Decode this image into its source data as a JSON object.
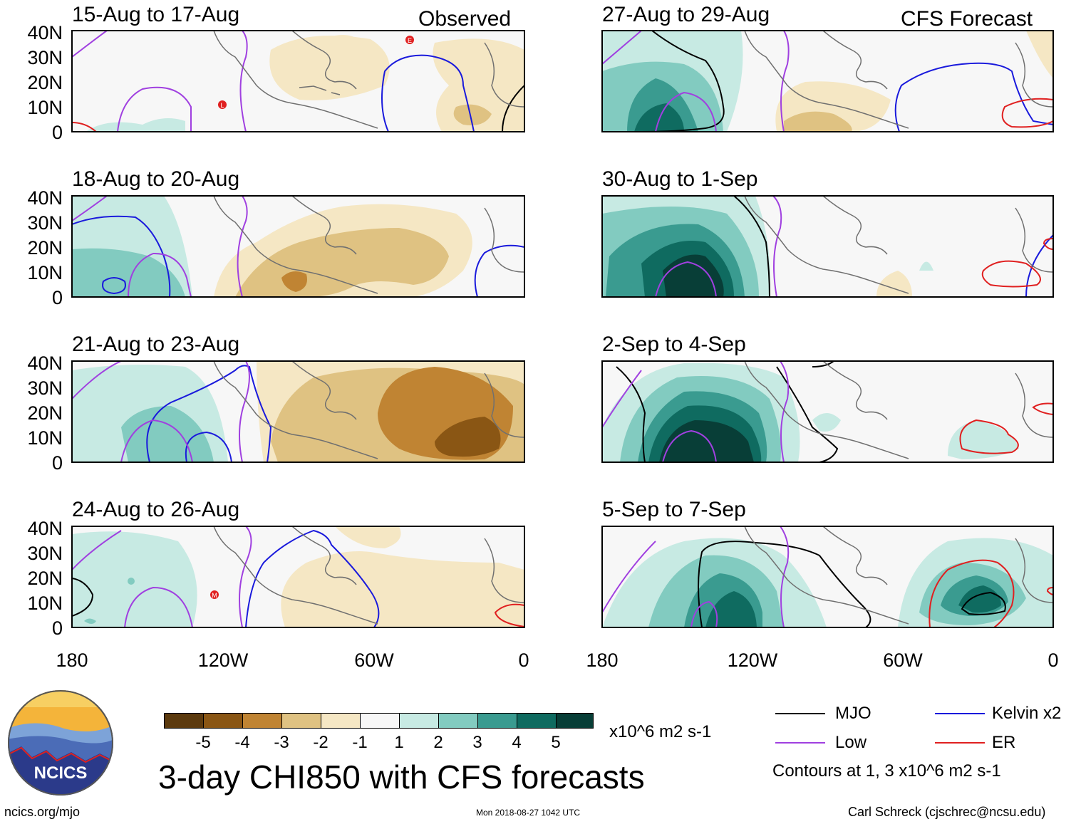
{
  "panels_left": [
    {
      "title": "15-Aug to 17-Aug",
      "tag": "Observed"
    },
    {
      "title": "18-Aug to 20-Aug",
      "tag": ""
    },
    {
      "title": "21-Aug to 23-Aug",
      "tag": ""
    },
    {
      "title": "24-Aug to 26-Aug",
      "tag": ""
    }
  ],
  "panels_right": [
    {
      "title": "27-Aug to 29-Aug",
      "tag": "CFS Forecast"
    },
    {
      "title": "30-Aug to 1-Sep",
      "tag": ""
    },
    {
      "title": "2-Sep to 4-Sep",
      "tag": ""
    },
    {
      "title": "5-Sep to 7-Sep",
      "tag": ""
    }
  ],
  "lat_labels": [
    "40N",
    "30N",
    "20N",
    "10N",
    "0"
  ],
  "lon_labels": [
    "180",
    "120W",
    "60W",
    "0"
  ],
  "storm_markers": [
    "E",
    "L",
    "M"
  ],
  "colorbar": {
    "colors": [
      "#5c3a0e",
      "#8a5614",
      "#c08433",
      "#dfc282",
      "#f5e7c4",
      "#f7f7f7",
      "#c7eae3",
      "#82cbc0",
      "#3a9b90",
      "#0f6b60",
      "#083e37"
    ],
    "ticks": [
      "-5",
      "-4",
      "-3",
      "-2",
      "-1",
      "1",
      "2",
      "3",
      "4",
      "5"
    ],
    "units": "x10^6 m2 s-1"
  },
  "main_title": "3-day CHI850 with CFS forecasts",
  "legend": {
    "items": [
      {
        "label": "MJO",
        "color": "#000000"
      },
      {
        "label": "Kelvin x2",
        "color": "#1a1adc"
      },
      {
        "label": "Low",
        "color": "#a040e0"
      },
      {
        "label": "ER",
        "color": "#e02020"
      }
    ],
    "contours_note": "Contours at 1, 3 x10^6 m2 s-1"
  },
  "logo_text": "NCICS",
  "footer": {
    "url": "ncics.org/mjo",
    "timestamp": "Mon 2018-08-27 1042 UTC",
    "credit": "Carl Schreck (cjschrec@ncsu.edu)"
  }
}
